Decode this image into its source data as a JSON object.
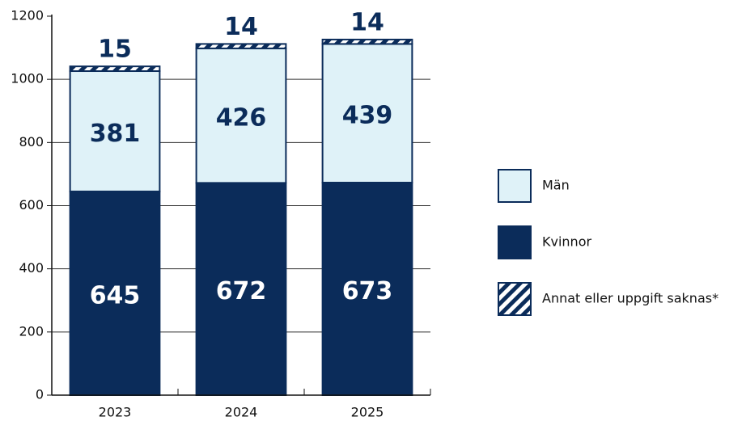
{
  "chart_data": {
    "type": "stacked_bar",
    "categories": [
      "2023",
      "2024",
      "2025"
    ],
    "series": [
      {
        "name": "Män",
        "color": "#dff2f8",
        "values": [
          381,
          426,
          439
        ]
      },
      {
        "name": "Kvinnor",
        "color": "#0b2c5a",
        "values": [
          645,
          672,
          673
        ]
      },
      {
        "name": "Annat eller uppgift saknas*",
        "color": "#0b2c5a",
        "values": [
          15,
          14,
          14
        ]
      }
    ],
    "ylim": [
      0,
      1200
    ],
    "yticks": [
      0,
      200,
      400,
      600,
      800,
      1000,
      1200
    ],
    "grid": true,
    "legend": "right"
  }
}
